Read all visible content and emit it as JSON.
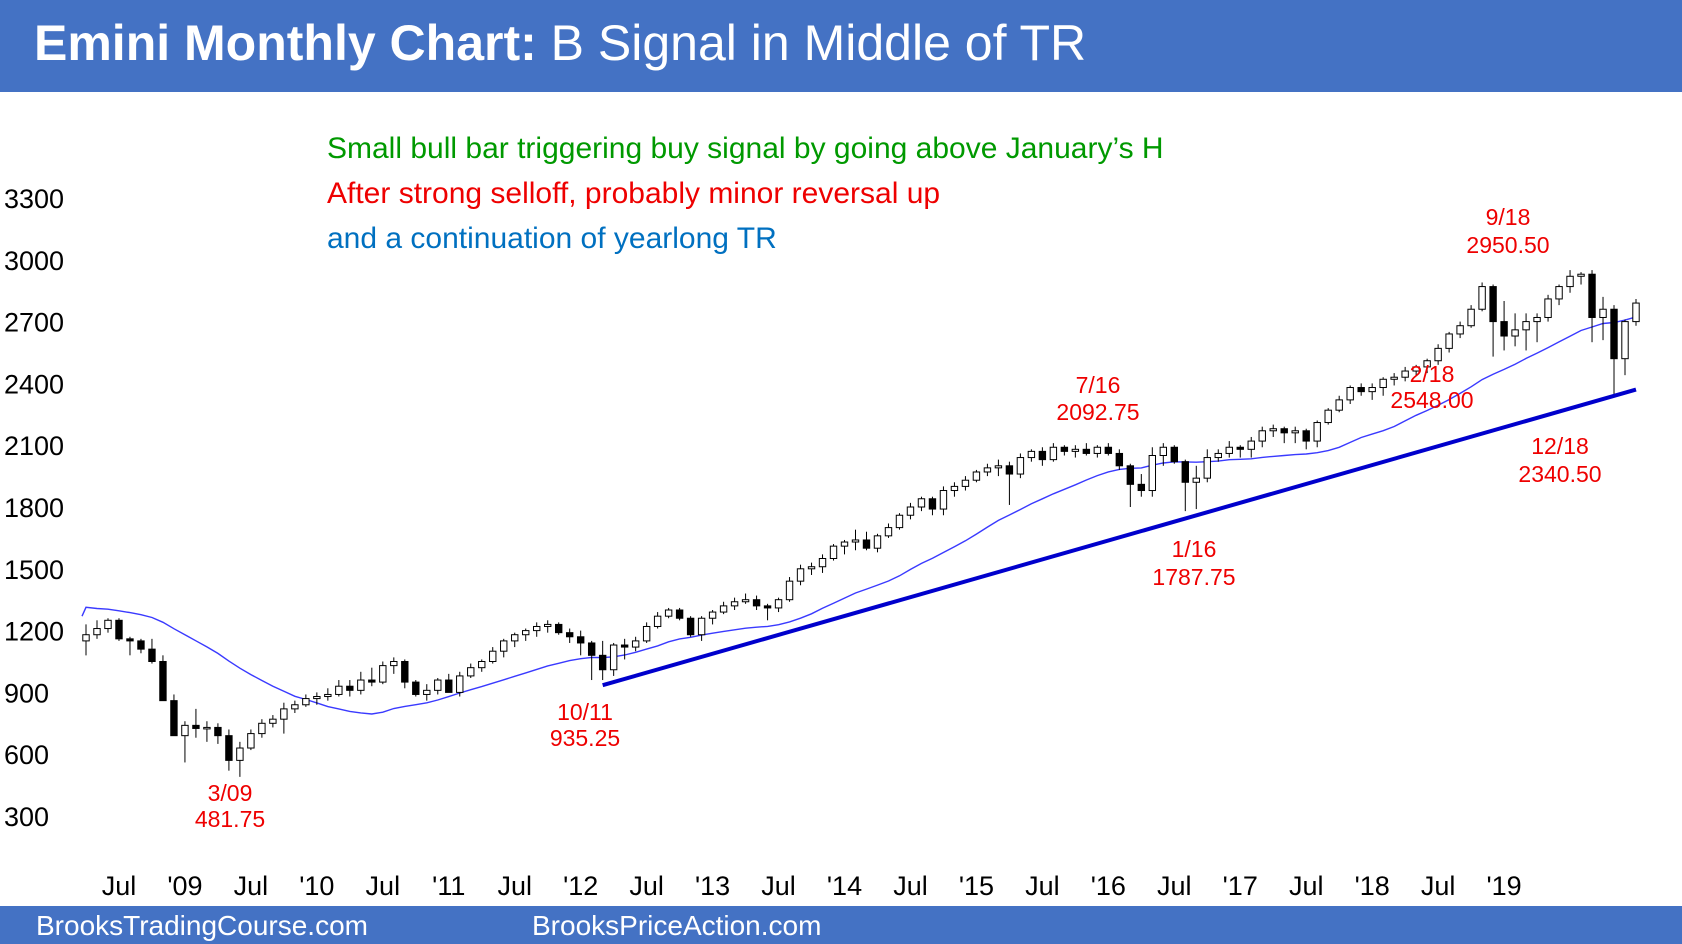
{
  "header": {
    "title_bold": "Emini Monthly Chart:",
    "title_rest": " B Signal in Middle of TR"
  },
  "footer": {
    "left": "BrooksTradingCourse.com",
    "right": "BrooksPriceAction.com"
  },
  "colors": {
    "banner": "#4472c4",
    "green": "#009900",
    "red": "#ee0000",
    "blue": "#0070c0",
    "trendline": "#0000cc",
    "ema": "#3a3aff"
  },
  "chart_data": {
    "type": "candlestick",
    "y_ticks": [
      "300",
      "600",
      "900",
      "1200",
      "1500",
      "1800",
      "2100",
      "2400",
      "2700",
      "3000",
      "3300"
    ],
    "x_ticks": [
      "Jul",
      "'09",
      "Jul",
      "'10",
      "Jul",
      "'11",
      "Jul",
      "'12",
      "Jul",
      "'13",
      "Jul",
      "'14",
      "Jul",
      "'15",
      "Jul",
      "'16",
      "Jul",
      "'17",
      "Jul",
      "'18",
      "Jul",
      "'19"
    ],
    "commentary": [
      "Small bull bar triggering buy signal by going above January’s H",
      "After strong selloff, probably minor reversal up",
      "and a continuation of yearlong TR"
    ],
    "annotations": [
      {
        "date": "3/09",
        "price": "481.75"
      },
      {
        "date": "10/11",
        "price": "935.25"
      },
      {
        "date": "7/16",
        "price": "2092.75"
      },
      {
        "date": "1/16",
        "price": "1787.75"
      },
      {
        "date": "9/18",
        "price": "2950.50"
      },
      {
        "date": "2/18",
        "price": "2548.00"
      },
      {
        "date": "12/18",
        "price": "2340.50"
      }
    ],
    "trendline": {
      "from_price": 935,
      "to_price": 2370
    },
    "candles": [
      [
        1150,
        1230,
        1080,
        1180
      ],
      [
        1180,
        1250,
        1160,
        1210
      ],
      [
        1210,
        1260,
        1190,
        1250
      ],
      [
        1250,
        1260,
        1150,
        1160
      ],
      [
        1160,
        1170,
        1080,
        1150
      ],
      [
        1150,
        1160,
        1090,
        1110
      ],
      [
        1110,
        1160,
        1040,
        1050
      ],
      [
        1050,
        1080,
        880,
        860
      ],
      [
        860,
        890,
        700,
        690
      ],
      [
        690,
        760,
        560,
        740
      ],
      [
        740,
        820,
        680,
        725
      ],
      [
        725,
        760,
        660,
        730
      ],
      [
        730,
        750,
        650,
        690
      ],
      [
        690,
        720,
        520,
        570
      ],
      [
        570,
        660,
        490,
        630
      ],
      [
        630,
        720,
        620,
        700
      ],
      [
        700,
        770,
        680,
        750
      ],
      [
        750,
        790,
        730,
        770
      ],
      [
        770,
        850,
        700,
        820
      ],
      [
        820,
        860,
        800,
        840
      ],
      [
        840,
        890,
        830,
        870
      ],
      [
        870,
        900,
        840,
        880
      ],
      [
        880,
        920,
        860,
        890
      ],
      [
        890,
        960,
        880,
        930
      ],
      [
        930,
        960,
        880,
        910
      ],
      [
        910,
        1000,
        890,
        960
      ],
      [
        960,
        1020,
        930,
        950
      ],
      [
        950,
        1050,
        940,
        1030
      ],
      [
        1030,
        1070,
        990,
        1050
      ],
      [
        1050,
        1060,
        920,
        950
      ],
      [
        950,
        960,
        880,
        890
      ],
      [
        890,
        940,
        860,
        910
      ],
      [
        910,
        970,
        890,
        960
      ],
      [
        960,
        990,
        900,
        900
      ],
      [
        900,
        1000,
        880,
        980
      ],
      [
        980,
        1040,
        970,
        1020
      ],
      [
        1020,
        1060,
        1000,
        1050
      ],
      [
        1050,
        1120,
        1040,
        1100
      ],
      [
        1100,
        1160,
        1070,
        1150
      ],
      [
        1150,
        1190,
        1120,
        1180
      ],
      [
        1180,
        1210,
        1150,
        1200
      ],
      [
        1200,
        1240,
        1170,
        1220
      ],
      [
        1220,
        1250,
        1190,
        1230
      ],
      [
        1230,
        1240,
        1180,
        1190
      ],
      [
        1190,
        1210,
        1140,
        1170
      ],
      [
        1170,
        1200,
        1080,
        1140
      ],
      [
        1140,
        1150,
        960,
        1080
      ],
      [
        1080,
        1150,
        960,
        1010
      ],
      [
        1010,
        1140,
        980,
        1130
      ],
      [
        1130,
        1160,
        1060,
        1120
      ],
      [
        1120,
        1170,
        1100,
        1150
      ],
      [
        1150,
        1240,
        1140,
        1220
      ],
      [
        1220,
        1290,
        1210,
        1270
      ],
      [
        1270,
        1310,
        1260,
        1300
      ],
      [
        1300,
        1310,
        1250,
        1260
      ],
      [
        1260,
        1270,
        1170,
        1180
      ],
      [
        1180,
        1270,
        1150,
        1260
      ],
      [
        1260,
        1300,
        1230,
        1290
      ],
      [
        1290,
        1340,
        1280,
        1320
      ],
      [
        1320,
        1360,
        1300,
        1340
      ],
      [
        1340,
        1380,
        1330,
        1350
      ],
      [
        1350,
        1370,
        1300,
        1320
      ],
      [
        1320,
        1330,
        1250,
        1310
      ],
      [
        1310,
        1360,
        1290,
        1350
      ],
      [
        1350,
        1460,
        1340,
        1440
      ],
      [
        1440,
        1520,
        1420,
        1500
      ],
      [
        1500,
        1530,
        1470,
        1510
      ],
      [
        1510,
        1570,
        1480,
        1550
      ],
      [
        1550,
        1620,
        1540,
        1610
      ],
      [
        1610,
        1640,
        1570,
        1630
      ],
      [
        1630,
        1690,
        1590,
        1640
      ],
      [
        1640,
        1680,
        1590,
        1600
      ],
      [
        1600,
        1670,
        1580,
        1660
      ],
      [
        1660,
        1720,
        1650,
        1700
      ],
      [
        1700,
        1770,
        1690,
        1760
      ],
      [
        1760,
        1820,
        1740,
        1800
      ],
      [
        1800,
        1850,
        1780,
        1840
      ],
      [
        1840,
        1850,
        1760,
        1790
      ],
      [
        1790,
        1900,
        1760,
        1880
      ],
      [
        1880,
        1920,
        1850,
        1900
      ],
      [
        1900,
        1950,
        1880,
        1930
      ],
      [
        1930,
        1980,
        1920,
        1970
      ],
      [
        1970,
        2010,
        1950,
        1990
      ],
      [
        1990,
        2030,
        1950,
        2000
      ],
      [
        2000,
        2020,
        1810,
        1960
      ],
      [
        1960,
        2060,
        1940,
        2040
      ],
      [
        2040,
        2080,
        2020,
        2070
      ],
      [
        2070,
        2090,
        2000,
        2030
      ],
      [
        2030,
        2110,
        2020,
        2090
      ],
      [
        2090,
        2100,
        2050,
        2070
      ],
      [
        2070,
        2100,
        2040,
        2080
      ],
      [
        2080,
        2110,
        2050,
        2060
      ],
      [
        2060,
        2100,
        2040,
        2090
      ],
      [
        2090,
        2110,
        2050,
        2060
      ],
      [
        2060,
        2080,
        1980,
        2000
      ],
      [
        2000,
        2010,
        1800,
        1910
      ],
      [
        1910,
        1960,
        1850,
        1880
      ],
      [
        1880,
        2090,
        1850,
        2050
      ],
      [
        2050,
        2110,
        2000,
        2090
      ],
      [
        2090,
        2100,
        2010,
        2020
      ],
      [
        2020,
        2030,
        1780,
        1920
      ],
      [
        1920,
        2000,
        1790,
        1940
      ],
      [
        1940,
        2080,
        1920,
        2040
      ],
      [
        2040,
        2080,
        2020,
        2060
      ],
      [
        2060,
        2120,
        2040,
        2090
      ],
      [
        2090,
        2100,
        2040,
        2080
      ],
      [
        2080,
        2140,
        2040,
        2120
      ],
      [
        2120,
        2190,
        2090,
        2170
      ],
      [
        2170,
        2200,
        2140,
        2180
      ],
      [
        2180,
        2190,
        2110,
        2160
      ],
      [
        2160,
        2190,
        2110,
        2170
      ],
      [
        2170,
        2180,
        2080,
        2120
      ],
      [
        2120,
        2220,
        2090,
        2210
      ],
      [
        2210,
        2280,
        2200,
        2270
      ],
      [
        2270,
        2340,
        2260,
        2320
      ],
      [
        2320,
        2390,
        2300,
        2380
      ],
      [
        2380,
        2400,
        2340,
        2360
      ],
      [
        2360,
        2400,
        2320,
        2380
      ],
      [
        2380,
        2430,
        2340,
        2420
      ],
      [
        2420,
        2450,
        2390,
        2430
      ],
      [
        2430,
        2480,
        2410,
        2460
      ],
      [
        2460,
        2490,
        2440,
        2480
      ],
      [
        2480,
        2520,
        2450,
        2510
      ],
      [
        2510,
        2590,
        2490,
        2570
      ],
      [
        2570,
        2650,
        2550,
        2640
      ],
      [
        2640,
        2700,
        2620,
        2680
      ],
      [
        2680,
        2780,
        2670,
        2760
      ],
      [
        2760,
        2890,
        2750,
        2870
      ],
      [
        2870,
        2880,
        2530,
        2700
      ],
      [
        2700,
        2800,
        2560,
        2630
      ],
      [
        2630,
        2740,
        2580,
        2660
      ],
      [
        2660,
        2740,
        2560,
        2700
      ],
      [
        2700,
        2740,
        2600,
        2720
      ],
      [
        2720,
        2830,
        2700,
        2810
      ],
      [
        2810,
        2880,
        2780,
        2870
      ],
      [
        2870,
        2950,
        2840,
        2920
      ],
      [
        2920,
        2940,
        2880,
        2930
      ],
      [
        2930,
        2950,
        2600,
        2720
      ],
      [
        2720,
        2820,
        2610,
        2760
      ],
      [
        2760,
        2780,
        2340,
        2520
      ],
      [
        2520,
        2710,
        2440,
        2700
      ],
      [
        2700,
        2810,
        2680,
        2790
      ]
    ]
  }
}
